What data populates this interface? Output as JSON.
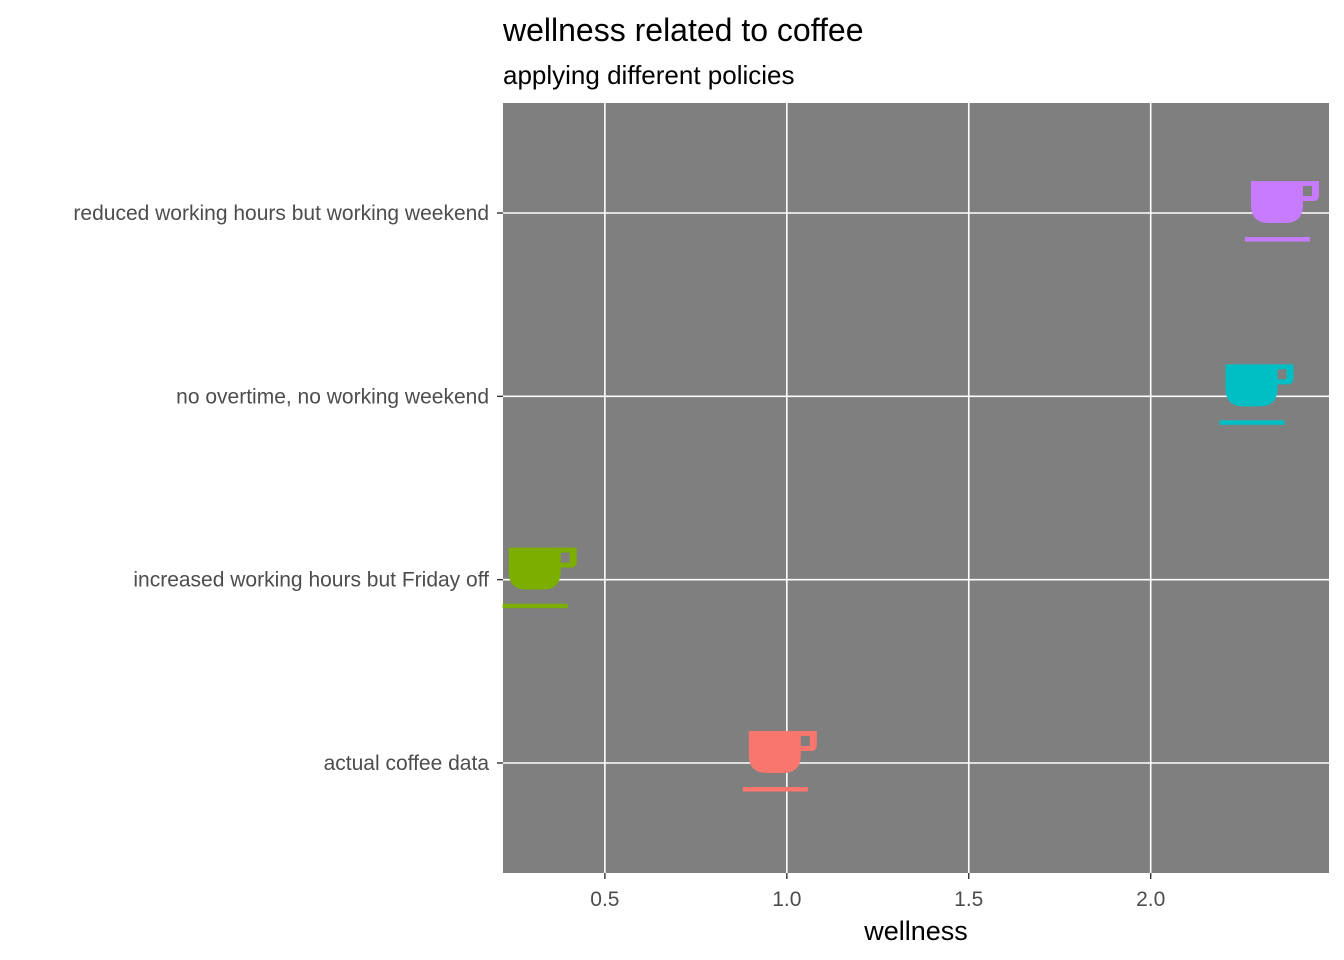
{
  "chart_data": {
    "type": "scatter",
    "title": "wellness related to coffee",
    "subtitle": "applying different policies",
    "xlabel": "wellness",
    "ylabel": "",
    "xlim": [
      0.22,
      2.49
    ],
    "xticks": [
      0.5,
      1.0,
      1.5,
      2.0
    ],
    "xtick_labels": [
      "0.5",
      "1.0",
      "1.5",
      "2.0"
    ],
    "categories": [
      "actual coffee data",
      "increased working hours but Friday off",
      "no overtime, no working weekend",
      "reduced working hours but working weekend"
    ],
    "points": [
      {
        "category": "actual coffee data",
        "x": 1.0,
        "color": "#F8766D"
      },
      {
        "category": "increased working hours but Friday off",
        "x": 0.34,
        "color": "#7CAE00"
      },
      {
        "category": "no overtime, no working weekend",
        "x": 2.31,
        "color": "#00BFC4"
      },
      {
        "category": "reduced working hours but working weekend",
        "x": 2.38,
        "color": "#C77CFF"
      }
    ],
    "marker_icon": "coffee-cup-icon",
    "panel_background": "#7f7f7f",
    "grid_color": "#ffffff",
    "grid": true,
    "legend": "none"
  }
}
